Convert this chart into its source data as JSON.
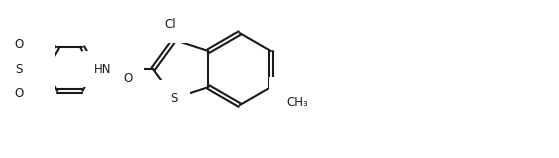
{
  "bg": "#ffffff",
  "lc": "#1a1a1a",
  "lw": 1.5,
  "fs": 8.5,
  "BL": 28,
  "c3a": [
    170,
    48
  ],
  "c7a": [
    170,
    88
  ],
  "methoxy_label": "O",
  "methoxy_ch3": "CH₃",
  "cl_label": "Cl",
  "s_thio_label": "S",
  "carbonyl_O": "O",
  "amide_NH": "HN",
  "sulf_S": "S",
  "O_label": "O",
  "N_label": "N"
}
